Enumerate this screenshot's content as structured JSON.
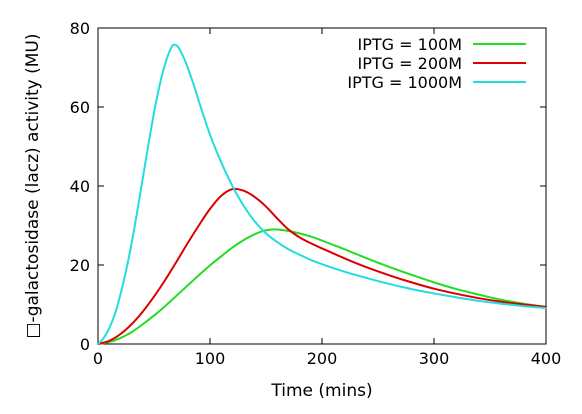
{
  "chart_data": {
    "type": "line",
    "title": "",
    "xlabel": "Time (mins)",
    "ylabel": "□-galactosidase (lacz) activity (MU)",
    "xlim": [
      0,
      400
    ],
    "ylim": [
      0,
      80
    ],
    "x_ticks": [
      "0",
      "100",
      "200",
      "300",
      "400"
    ],
    "y_ticks": [
      "0",
      "20",
      "40",
      "60",
      "80"
    ],
    "grid": false,
    "legend_position": "top-right",
    "series": [
      {
        "name": "IPTG = 100M",
        "color": "#22dd22",
        "points": [
          [
            0,
            0
          ],
          [
            10,
            0.5
          ],
          [
            20,
            1.5
          ],
          [
            30,
            3.0
          ],
          [
            40,
            5.0
          ],
          [
            50,
            7.2
          ],
          [
            60,
            9.6
          ],
          [
            70,
            12.2
          ],
          [
            80,
            14.8
          ],
          [
            90,
            17.4
          ],
          [
            100,
            19.9
          ],
          [
            110,
            22.2
          ],
          [
            120,
            24.4
          ],
          [
            130,
            26.3
          ],
          [
            140,
            27.8
          ],
          [
            150,
            28.8
          ],
          [
            160,
            29.0
          ],
          [
            170,
            28.6
          ],
          [
            180,
            28.0
          ],
          [
            190,
            27.2
          ],
          [
            200,
            26.2
          ],
          [
            220,
            24.0
          ],
          [
            240,
            21.7
          ],
          [
            260,
            19.5
          ],
          [
            280,
            17.5
          ],
          [
            300,
            15.6
          ],
          [
            320,
            13.9
          ],
          [
            340,
            12.5
          ],
          [
            360,
            11.2
          ],
          [
            380,
            10.2
          ],
          [
            400,
            9.4
          ]
        ]
      },
      {
        "name": "IPTG = 200M",
        "color": "#dd0000",
        "points": [
          [
            0,
            0
          ],
          [
            10,
            0.8
          ],
          [
            20,
            2.5
          ],
          [
            30,
            5.0
          ],
          [
            40,
            8.2
          ],
          [
            50,
            12.0
          ],
          [
            60,
            16.2
          ],
          [
            70,
            20.8
          ],
          [
            80,
            25.5
          ],
          [
            90,
            30.0
          ],
          [
            100,
            34.2
          ],
          [
            110,
            37.5
          ],
          [
            120,
            39.2
          ],
          [
            130,
            38.8
          ],
          [
            140,
            37.2
          ],
          [
            150,
            34.8
          ],
          [
            160,
            31.8
          ],
          [
            170,
            29.0
          ],
          [
            180,
            27.0
          ],
          [
            190,
            25.5
          ],
          [
            200,
            24.2
          ],
          [
            220,
            21.7
          ],
          [
            240,
            19.4
          ],
          [
            260,
            17.4
          ],
          [
            280,
            15.6
          ],
          [
            300,
            14.0
          ],
          [
            320,
            12.7
          ],
          [
            340,
            11.6
          ],
          [
            360,
            10.7
          ],
          [
            380,
            10.0
          ],
          [
            400,
            9.4
          ]
        ]
      },
      {
        "name": "IPTG = 1000M",
        "color": "#22dddd",
        "points": [
          [
            0,
            0
          ],
          [
            5,
            1.5
          ],
          [
            10,
            4.0
          ],
          [
            15,
            7.5
          ],
          [
            20,
            12.5
          ],
          [
            25,
            18.5
          ],
          [
            30,
            25.5
          ],
          [
            35,
            33.5
          ],
          [
            40,
            42.0
          ],
          [
            45,
            50.5
          ],
          [
            50,
            58.5
          ],
          [
            55,
            65.5
          ],
          [
            60,
            71.0
          ],
          [
            65,
            74.8
          ],
          [
            68,
            75.8
          ],
          [
            72,
            75.0
          ],
          [
            78,
            71.5
          ],
          [
            85,
            66.0
          ],
          [
            90,
            61.5
          ],
          [
            100,
            53.0
          ],
          [
            110,
            46.0
          ],
          [
            120,
            40.0
          ],
          [
            130,
            35.0
          ],
          [
            140,
            31.0
          ],
          [
            150,
            28.0
          ],
          [
            160,
            25.8
          ],
          [
            170,
            24.0
          ],
          [
            180,
            22.6
          ],
          [
            190,
            21.3
          ],
          [
            200,
            20.2
          ],
          [
            220,
            18.3
          ],
          [
            240,
            16.7
          ],
          [
            260,
            15.2
          ],
          [
            280,
            13.9
          ],
          [
            300,
            12.8
          ],
          [
            320,
            11.8
          ],
          [
            340,
            10.9
          ],
          [
            360,
            10.2
          ],
          [
            380,
            9.6
          ],
          [
            400,
            9.1
          ]
        ]
      }
    ]
  }
}
